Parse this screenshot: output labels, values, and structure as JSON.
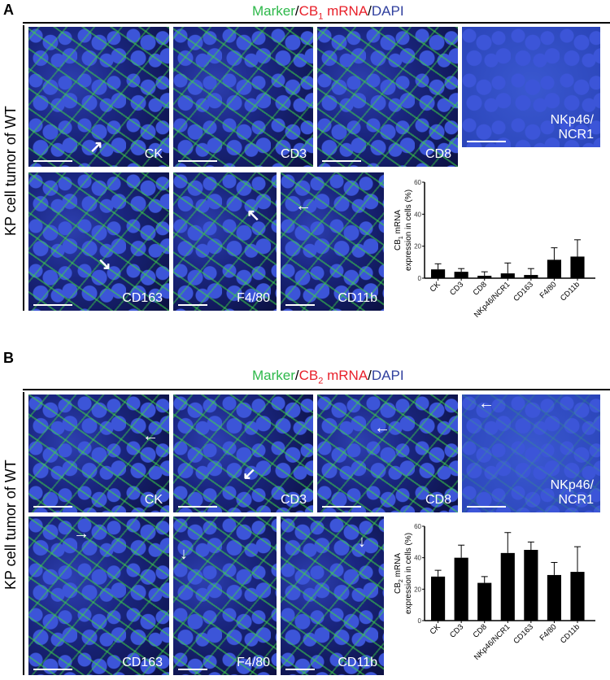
{
  "panels": [
    {
      "letter": "A",
      "title": {
        "marker": "Marker",
        "sep1": "/",
        "target": "CB",
        "sub": "1",
        "mrna": " mRNA",
        "sep2": "/",
        "dapi": "DAPI"
      },
      "side_label": "KP cell tumor of WT",
      "images": [
        "CK",
        "CD3",
        "CD8",
        "NKp46/\nNCR1",
        "CD163",
        "F4/80",
        "CD11b"
      ]
    },
    {
      "letter": "B",
      "title": {
        "marker": "Marker",
        "sep1": "/",
        "target": "CB",
        "sub": "2",
        "mrna": " mRNA",
        "sep2": "/",
        "dapi": "DAPI"
      },
      "side_label": "KP cell tumor of WT",
      "images": [
        "CK",
        "CD3",
        "CD8",
        "NKp46/\nNCR1",
        "CD163",
        "F4/80",
        "CD11b"
      ]
    }
  ],
  "colors": {
    "marker": "#2db84a",
    "mrna": "#e8202a",
    "dapi": "#2f3f9e",
    "bar": "#000000"
  },
  "chart_data": [
    {
      "type": "bar",
      "categories": [
        "CK",
        "CD3",
        "CD8",
        "NKp46/NCR1",
        "CD163",
        "F4/80",
        "CD11b"
      ],
      "values": [
        5.5,
        4,
        1.5,
        3,
        2,
        11.5,
        13.5
      ],
      "error_upper": [
        9,
        6,
        4,
        9.5,
        6,
        19,
        24
      ],
      "ylabel_line1": "CB",
      "ylabel_sub": "1",
      "ylabel_line1_rest": " mRNA",
      "ylabel_line2": "expression in cells (%)",
      "ylim": [
        0,
        60
      ],
      "yticks": [
        "0",
        "20",
        "40",
        "60"
      ]
    },
    {
      "type": "bar",
      "categories": [
        "CK",
        "CD3",
        "CD8",
        "NKp46/NCR1",
        "CD163",
        "F4/80",
        "CD11b"
      ],
      "values": [
        28,
        40,
        24,
        43,
        45,
        29,
        31
      ],
      "error_upper": [
        32,
        48,
        28,
        56,
        50,
        37,
        47
      ],
      "ylabel_line1": "CB",
      "ylabel_sub": "2",
      "ylabel_line1_rest": " mRNA",
      "ylabel_line2": "expression in cells (%)",
      "ylim": [
        0,
        60
      ],
      "yticks": [
        "0",
        "20",
        "40",
        "60"
      ]
    }
  ]
}
